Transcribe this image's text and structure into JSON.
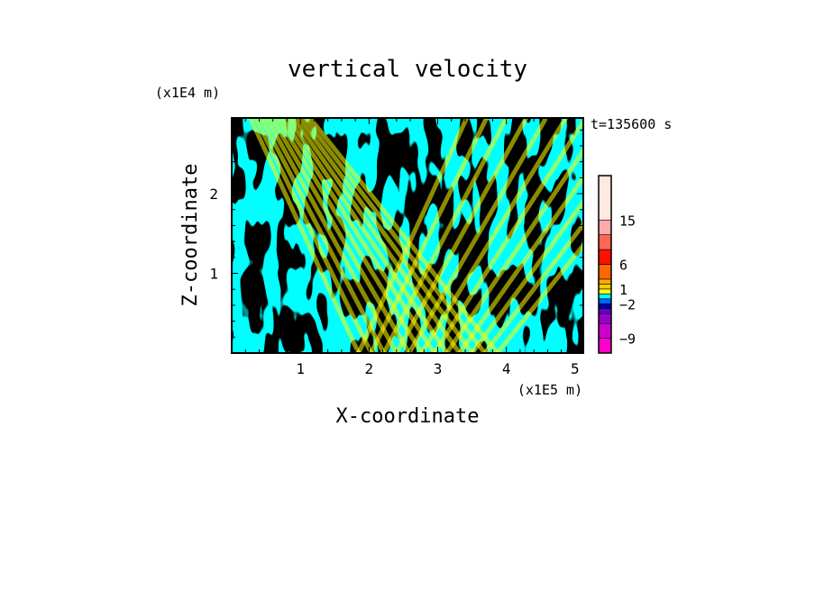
{
  "chart_data": {
    "type": "heatmap",
    "title": "vertical velocity",
    "time_label": "t=135600 s",
    "xlabel": "X-coordinate",
    "ylabel": "Z-coordinate",
    "x_scale_label": "(x1E5 m)",
    "y_scale_label": "(x1E4 m)",
    "xlim": [
      0,
      5.12
    ],
    "ylim": [
      0,
      2.95
    ],
    "x_ticks": [
      1,
      2,
      3,
      4,
      5
    ],
    "y_ticks": [
      1,
      2
    ],
    "grid": false,
    "field_colors": {
      "positive": "#ffff00",
      "negative": "#00ffff"
    },
    "colorbar": {
      "min": -12,
      "max": 24,
      "levels": [
        {
          "from": -12,
          "to": -9,
          "color": "#ff00cc"
        },
        {
          "from": -9,
          "to": -6,
          "color": "#cc00cc"
        },
        {
          "from": -6,
          "to": -4,
          "color": "#9900cc"
        },
        {
          "from": -4,
          "to": -3,
          "color": "#6600cc"
        },
        {
          "from": -3,
          "to": -2,
          "color": "#0000aa"
        },
        {
          "from": -2,
          "to": -1,
          "color": "#0066ff"
        },
        {
          "from": -1,
          "to": 0,
          "color": "#00ffff"
        },
        {
          "from": 0,
          "to": 1,
          "color": "#ffff00"
        },
        {
          "from": 1,
          "to": 2,
          "color": "#ffcc00"
        },
        {
          "from": 2,
          "to": 3,
          "color": "#ffaa00"
        },
        {
          "from": 3,
          "to": 6,
          "color": "#ff6600"
        },
        {
          "from": 6,
          "to": 9,
          "color": "#ff1100"
        },
        {
          "from": 9,
          "to": 12,
          "color": "#ff6655"
        },
        {
          "from": 12,
          "to": 15,
          "color": "#ffaaaa"
        },
        {
          "from": 15,
          "to": 24,
          "color": "#ffe8e0"
        }
      ],
      "tick_labels": [
        {
          "value": 15,
          "label": "15"
        },
        {
          "value": 6,
          "label": "6"
        },
        {
          "value": 1,
          "label": "1"
        },
        {
          "value": -2,
          "label": "−2"
        },
        {
          "value": -9,
          "label": "−9"
        }
      ]
    }
  }
}
